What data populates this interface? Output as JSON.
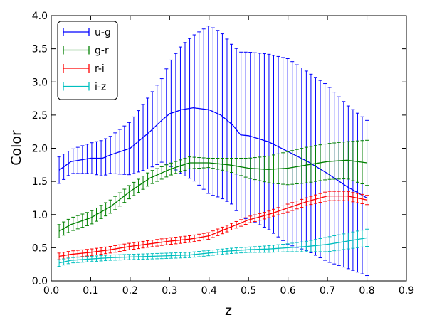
{
  "chart_data": {
    "type": "line",
    "title": "",
    "xlabel": "z",
    "ylabel": "Color",
    "xlim": [
      0.0,
      0.9
    ],
    "ylim": [
      0.0,
      4.0
    ],
    "xticks": [
      "0.0",
      "0.1",
      "0.2",
      "0.3",
      "0.4",
      "0.5",
      "0.6",
      "0.7",
      "0.8",
      "0.9"
    ],
    "yticks": [
      "0.0",
      "0.5",
      "1.0",
      "1.5",
      "2.0",
      "2.5",
      "3.0",
      "3.5",
      "4.0"
    ],
    "legend_position": "top-left",
    "error_bars": true,
    "series": [
      {
        "name": "u-g",
        "color": "#0000ff",
        "x": [
          0.02,
          0.05,
          0.1,
          0.13,
          0.15,
          0.2,
          0.25,
          0.28,
          0.3,
          0.33,
          0.36,
          0.4,
          0.43,
          0.46,
          0.48,
          0.5,
          0.55,
          0.6,
          0.65,
          0.7,
          0.75,
          0.8
        ],
        "y": [
          1.67,
          1.8,
          1.85,
          1.85,
          1.9,
          2.0,
          2.25,
          2.42,
          2.52,
          2.58,
          2.61,
          2.58,
          2.5,
          2.35,
          2.2,
          2.19,
          2.1,
          1.95,
          1.8,
          1.62,
          1.42,
          1.25
        ],
        "upper": [
          1.87,
          1.98,
          2.08,
          2.12,
          2.18,
          2.4,
          2.8,
          3.05,
          3.3,
          3.55,
          3.7,
          3.85,
          3.75,
          3.55,
          3.45,
          3.45,
          3.42,
          3.35,
          3.15,
          2.95,
          2.65,
          2.42
        ],
        "lower": [
          1.47,
          1.62,
          1.62,
          1.58,
          1.62,
          1.6,
          1.7,
          1.79,
          1.74,
          1.61,
          1.52,
          1.31,
          1.25,
          1.15,
          0.95,
          0.93,
          0.78,
          0.55,
          0.45,
          0.29,
          0.19,
          0.08
        ]
      },
      {
        "name": "g-r",
        "color": "#008000",
        "x": [
          0.02,
          0.05,
          0.1,
          0.15,
          0.2,
          0.25,
          0.3,
          0.35,
          0.4,
          0.45,
          0.5,
          0.55,
          0.6,
          0.65,
          0.7,
          0.75,
          0.8
        ],
        "y": [
          0.75,
          0.85,
          0.95,
          1.12,
          1.35,
          1.55,
          1.68,
          1.78,
          1.78,
          1.75,
          1.7,
          1.68,
          1.7,
          1.75,
          1.8,
          1.82,
          1.78
        ],
        "upper": [
          0.85,
          0.95,
          1.05,
          1.22,
          1.45,
          1.65,
          1.77,
          1.87,
          1.85,
          1.85,
          1.85,
          1.88,
          1.95,
          2.02,
          2.07,
          2.1,
          2.12
        ],
        "lower": [
          0.65,
          0.75,
          0.85,
          1.02,
          1.25,
          1.45,
          1.59,
          1.69,
          1.71,
          1.65,
          1.55,
          1.48,
          1.45,
          1.48,
          1.53,
          1.54,
          1.44
        ]
      },
      {
        "name": "r-i",
        "color": "#ff0000",
        "x": [
          0.02,
          0.05,
          0.1,
          0.15,
          0.2,
          0.25,
          0.3,
          0.35,
          0.4,
          0.45,
          0.5,
          0.55,
          0.6,
          0.65,
          0.7,
          0.75,
          0.8
        ],
        "y": [
          0.37,
          0.4,
          0.43,
          0.47,
          0.52,
          0.56,
          0.6,
          0.63,
          0.68,
          0.8,
          0.92,
          1.0,
          1.1,
          1.2,
          1.28,
          1.28,
          1.22
        ],
        "upper": [
          0.42,
          0.45,
          0.48,
          0.52,
          0.57,
          0.61,
          0.65,
          0.68,
          0.73,
          0.85,
          0.97,
          1.05,
          1.16,
          1.26,
          1.35,
          1.35,
          1.29
        ],
        "lower": [
          0.32,
          0.35,
          0.38,
          0.42,
          0.47,
          0.51,
          0.55,
          0.58,
          0.63,
          0.75,
          0.87,
          0.95,
          1.04,
          1.14,
          1.21,
          1.21,
          1.15
        ]
      },
      {
        "name": "i-z",
        "color": "#00bfbf",
        "x": [
          0.02,
          0.05,
          0.1,
          0.15,
          0.2,
          0.25,
          0.3,
          0.35,
          0.4,
          0.45,
          0.5,
          0.55,
          0.6,
          0.65,
          0.7,
          0.75,
          0.8
        ],
        "y": [
          0.27,
          0.31,
          0.33,
          0.35,
          0.36,
          0.37,
          0.38,
          0.39,
          0.42,
          0.45,
          0.47,
          0.48,
          0.5,
          0.52,
          0.55,
          0.6,
          0.65
        ],
        "upper": [
          0.32,
          0.35,
          0.37,
          0.39,
          0.4,
          0.41,
          0.42,
          0.43,
          0.46,
          0.49,
          0.51,
          0.53,
          0.56,
          0.6,
          0.66,
          0.72,
          0.78
        ],
        "lower": [
          0.22,
          0.27,
          0.29,
          0.31,
          0.32,
          0.33,
          0.34,
          0.35,
          0.38,
          0.41,
          0.43,
          0.43,
          0.44,
          0.44,
          0.44,
          0.48,
          0.52
        ]
      }
    ]
  }
}
